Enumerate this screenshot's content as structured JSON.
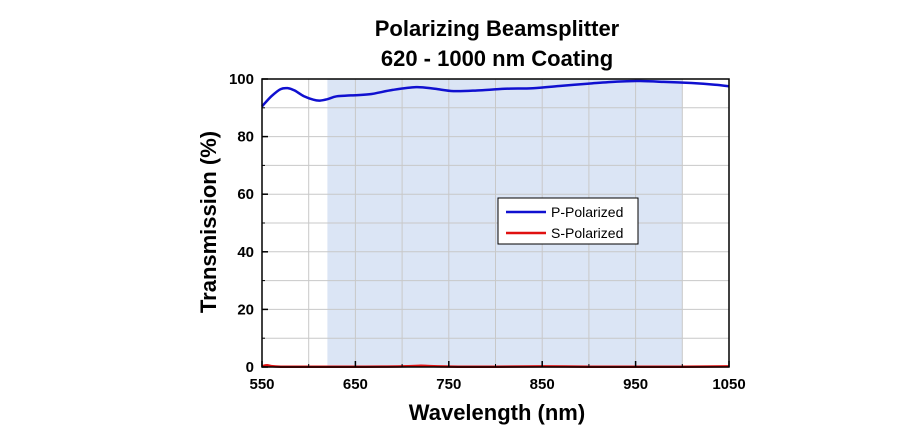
{
  "chart_data": {
    "type": "line",
    "title_lines": [
      "Polarizing Beamsplitter",
      "620 - 1000 nm Coating"
    ],
    "xlabel": "Wavelength (nm)",
    "ylabel": "Transmission (%)",
    "xlim": [
      550,
      1050
    ],
    "ylim": [
      0,
      100
    ],
    "xticks": [
      550,
      650,
      750,
      850,
      950,
      1050
    ],
    "yticks": [
      0,
      20,
      40,
      60,
      80,
      100
    ],
    "grid": true,
    "shaded_region": {
      "from": 620,
      "to": 1000,
      "color": "#dbe5f5"
    },
    "legend_position": "center-right",
    "series": [
      {
        "name": "P-Polarized",
        "color": "#1010d0",
        "x": [
          550,
          560,
          570,
          578,
          585,
          595,
          605,
          612,
          620,
          630,
          645,
          665,
          690,
          715,
          735,
          755,
          780,
          810,
          840,
          870,
          900,
          930,
          955,
          980,
          1010,
          1035,
          1050
        ],
        "y": [
          90.5,
          94,
          96.5,
          96.8,
          96,
          94,
          92.8,
          92.5,
          93,
          94,
          94.3,
          94.7,
          96.2,
          97.2,
          96.6,
          95.8,
          96,
          96.6,
          96.8,
          97.6,
          98.4,
          99.1,
          99.3,
          99,
          98.6,
          98,
          97.5
        ]
      },
      {
        "name": "S-Polarized",
        "color": "#e01010",
        "x": [
          550,
          555,
          560,
          570,
          590,
          620,
          660,
          700,
          720,
          730,
          760,
          800,
          850,
          900,
          950,
          1000,
          1050
        ],
        "y": [
          0.2,
          0.6,
          0.3,
          0.1,
          0.1,
          0.1,
          0.1,
          0.2,
          0.4,
          0.3,
          0.1,
          0.1,
          0.2,
          0.1,
          0.1,
          0.1,
          0.2
        ]
      }
    ]
  }
}
